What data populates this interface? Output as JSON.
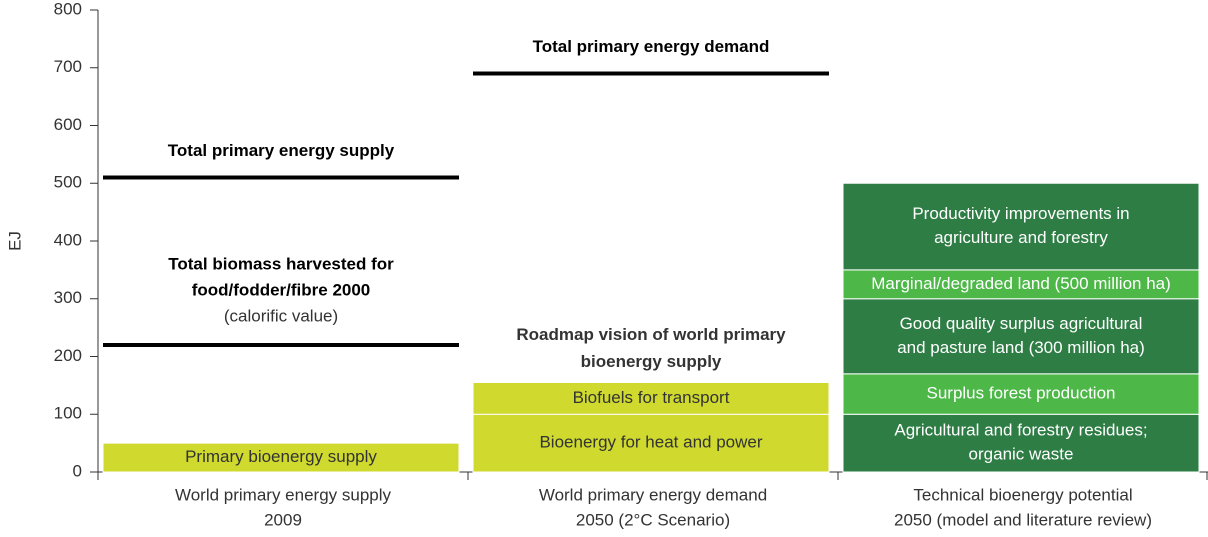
{
  "chart_data": {
    "type": "stacked_bar",
    "y_label": "EJ",
    "ylim": [
      0,
      800
    ],
    "yticks": [
      0,
      100,
      200,
      300,
      400,
      500,
      600,
      700,
      800
    ],
    "categories": [
      [
        "World primary energy supply",
        "2009"
      ],
      [
        "World primary energy demand",
        "2050 (2°C Scenario)"
      ],
      [
        "Technical bioenergy potential",
        "2050 (model and literature review)"
      ]
    ],
    "stacks": [
      {
        "segments": [
          {
            "name": [
              "Primary bioenergy supply"
            ],
            "value": 50,
            "color": "#cfd92e",
            "text_color": "#333333"
          }
        ],
        "lines": [
          {
            "label": [
              "Total primary energy supply"
            ],
            "value": 510
          },
          {
            "label": [
              "Total biomass harvested for",
              "food/fodder/fibre 2000"
            ],
            "note": "(calorific value)",
            "value": 220
          }
        ]
      },
      {
        "heading": [
          "Roadmap vision of world primary",
          "bioenergy supply"
        ],
        "segments": [
          {
            "name": [
              "Bioenergy for heat  and power"
            ],
            "value": 100,
            "color": "#cfd92e",
            "text_color": "#333333"
          },
          {
            "name": [
              "Biofuels for transport"
            ],
            "value": 55,
            "color": "#cfd92e",
            "text_color": "#333333"
          }
        ],
        "lines": [
          {
            "label": [
              "Total primary energy demand"
            ],
            "value": 690
          }
        ]
      },
      {
        "segments": [
          {
            "name": [
              "Agricultural and forestry residues;",
              "organic waste"
            ],
            "value": 100,
            "color": "#2e7d45",
            "text_color": "#ffffff"
          },
          {
            "name": [
              "Surplus forest production"
            ],
            "value": 70,
            "color": "#4db848",
            "text_color": "#ffffff"
          },
          {
            "name": [
              "Good quality surplus agricultural",
              "and pasture land (300 million ha)"
            ],
            "value": 130,
            "color": "#2e7d45",
            "text_color": "#ffffff"
          },
          {
            "name": [
              "Marginal/degraded land (500 million ha)"
            ],
            "value": 50,
            "color": "#4db848",
            "text_color": "#ffffff"
          },
          {
            "name": [
              "Productivity improvements in",
              "agriculture and forestry"
            ],
            "value": 150,
            "color": "#2e7d45",
            "text_color": "#ffffff"
          }
        ]
      }
    ]
  }
}
